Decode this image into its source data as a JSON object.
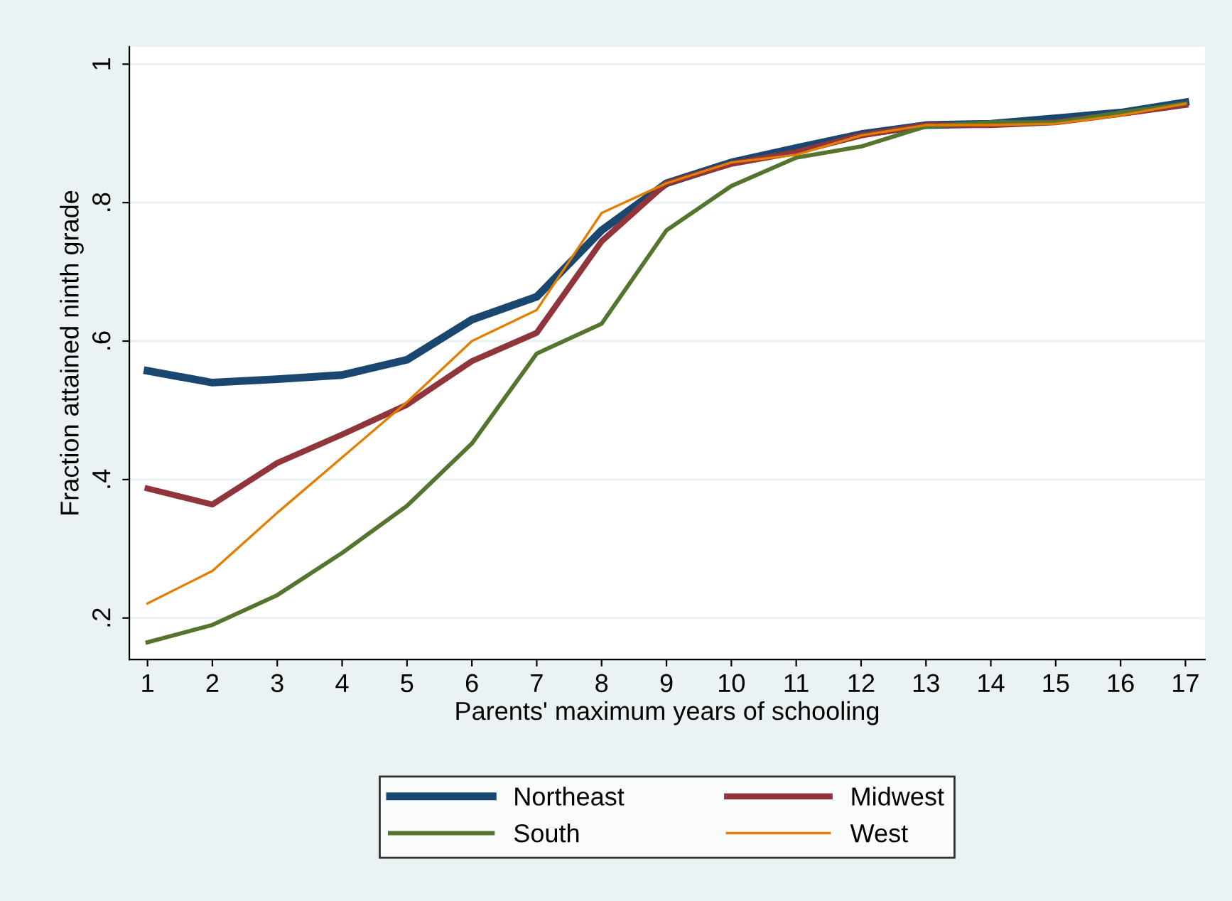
{
  "chart_data": {
    "type": "line",
    "xlabel": "Parents' maximum years of schooling",
    "ylabel": "Fraction attained ninth grade",
    "x": [
      1,
      2,
      3,
      4,
      5,
      6,
      7,
      8,
      9,
      10,
      11,
      12,
      13,
      14,
      15,
      16,
      17
    ],
    "xlim": [
      0.72,
      17.3
    ],
    "xticks": [
      1,
      2,
      3,
      4,
      5,
      6,
      7,
      8,
      9,
      10,
      11,
      12,
      13,
      14,
      15,
      16,
      17
    ],
    "ylim": [
      0.14,
      1.025
    ],
    "yticks": [
      {
        "value": 0.2,
        "label": ".2"
      },
      {
        "value": 0.4,
        "label": ".4"
      },
      {
        "value": 0.6,
        "label": ".6"
      },
      {
        "value": 0.8,
        "label": ".8"
      },
      1
    ],
    "grid": "y",
    "legend": "bottom",
    "marker": "none",
    "line_style": "solid",
    "series": [
      {
        "name": "Northeast",
        "color": "#1a476f",
        "values": [
          0.557,
          0.54,
          0.545,
          0.551,
          0.573,
          0.631,
          0.664,
          0.76,
          0.828,
          0.858,
          0.879,
          0.899,
          0.912,
          0.914,
          0.922,
          0.93,
          0.945
        ]
      },
      {
        "name": "Midwest",
        "color": "#90353b",
        "values": [
          0.387,
          0.364,
          0.424,
          0.465,
          0.508,
          0.571,
          0.612,
          0.744,
          0.828,
          0.856,
          0.873,
          0.897,
          0.912,
          0.912,
          0.916,
          0.928,
          0.941
        ]
      },
      {
        "name": "South",
        "color": "#55752f",
        "values": [
          0.165,
          0.19,
          0.233,
          0.294,
          0.362,
          0.452,
          0.582,
          0.625,
          0.76,
          0.824,
          0.865,
          0.881,
          0.91,
          0.916,
          0.916,
          0.93,
          0.943
        ]
      },
      {
        "name": "West",
        "color": "#e37e00",
        "values": [
          0.221,
          0.268,
          0.352,
          0.432,
          0.512,
          0.6,
          0.645,
          0.785,
          0.828,
          0.858,
          0.869,
          0.897,
          0.912,
          0.912,
          0.914,
          0.926,
          0.943
        ]
      }
    ]
  }
}
